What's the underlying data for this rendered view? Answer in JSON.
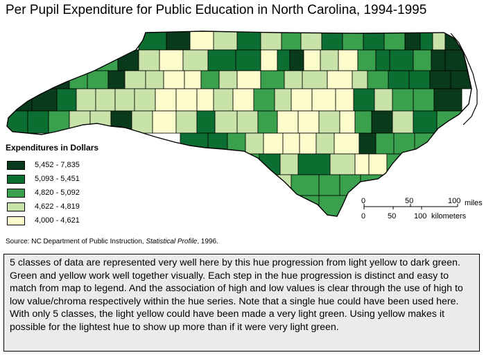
{
  "title": "Per Pupil Expenditure for Public Education in North Carolina, 1994-1995",
  "legend": {
    "title": "Expenditures in Dollars",
    "classes": [
      {
        "label": "5,452 - 7,835",
        "color": "#0a3a1c"
      },
      {
        "label": "5,093 - 5,451",
        "color": "#0d6e31"
      },
      {
        "label": "4,820 - 5,092",
        "color": "#3aa04e"
      },
      {
        "label": "4,622 - 4,819",
        "color": "#c8e3a9"
      },
      {
        "label": "4,000 - 4,621",
        "color": "#fcfbcc"
      }
    ]
  },
  "scale_bar": {
    "miles_ticks": [
      "0",
      "50",
      "100"
    ],
    "miles_unit": "miles",
    "km_ticks": [
      "0",
      "50",
      "100"
    ],
    "km_unit": "kilometers"
  },
  "source": {
    "prefix": "Source: NC Department of Public Instruction, ",
    "publication": "Statistical Profile",
    "suffix": ", 1996."
  },
  "note": "5 classes of data are represented very well here by this hue progression from light yellow to dark green. Green and yellow work well together visually. Each step in the hue progression is distinct and easy to match from map to legend. And the association of high and low values is clear through the use of high to low value/chroma respectively within the hue series. Note that a single hue could have been used here. With only 5 classes, the light yellow could have been made a very light green. Using yellow makes it possible for the lightest hue to show up more than if it were very light green."
}
